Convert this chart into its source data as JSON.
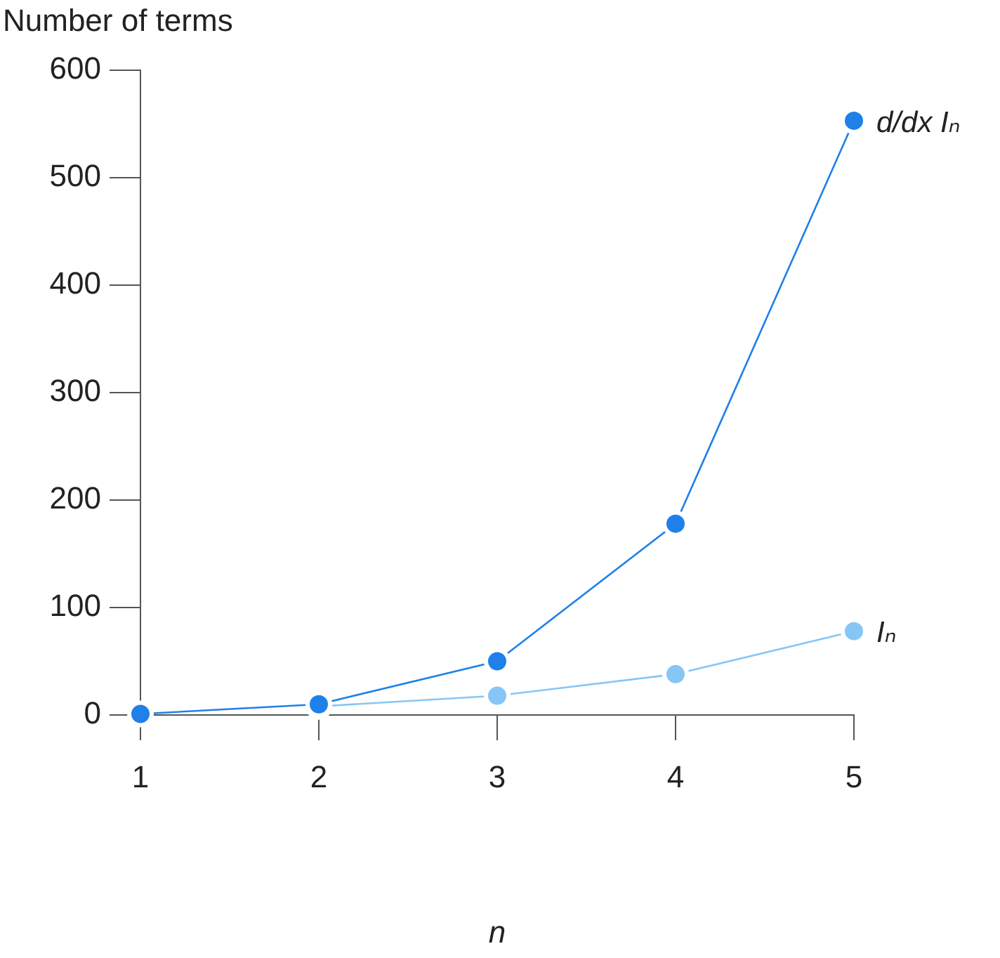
{
  "chart_data": {
    "type": "line",
    "ylabel": "Number of terms",
    "xlabel": "n",
    "x": [
      1,
      2,
      3,
      4,
      5
    ],
    "series": [
      {
        "name": "d/dx Iₙ",
        "color": "#1e80e8",
        "values": [
          1,
          10,
          50,
          178,
          553
        ]
      },
      {
        "name": "Iₙ",
        "color": "#86c6f5",
        "values": [
          null,
          8,
          18,
          38,
          78
        ]
      }
    ],
    "xlim": [
      1,
      5
    ],
    "xticks": [
      1,
      2,
      3,
      4,
      5
    ],
    "ylim": [
      0,
      600
    ],
    "yticks": [
      0,
      100,
      200,
      300,
      400,
      500,
      600
    ],
    "grid": false,
    "legend": false,
    "marker": "circle",
    "line_style": "solid"
  }
}
